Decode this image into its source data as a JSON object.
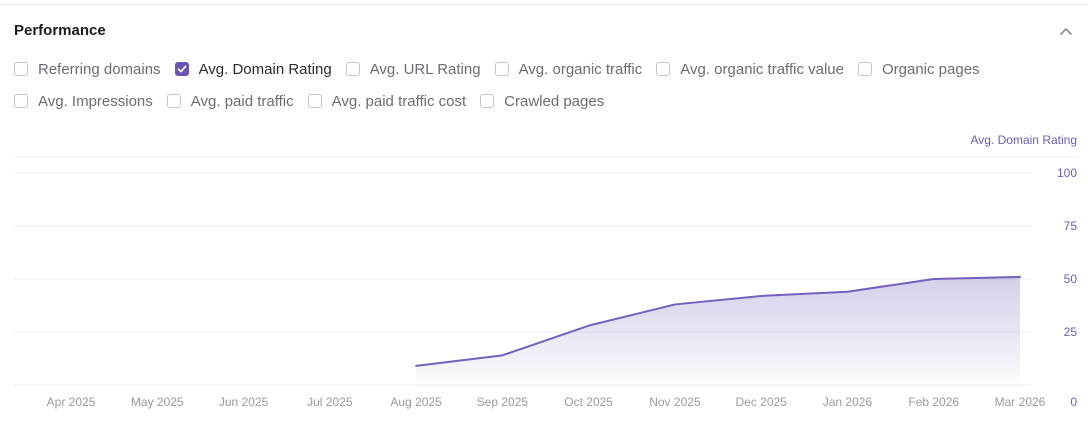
{
  "panel": {
    "title": "Performance"
  },
  "metrics": {
    "row1": [
      {
        "label": "Referring domains",
        "checked": false
      },
      {
        "label": "Avg. Domain Rating",
        "checked": true
      },
      {
        "label": "Avg. URL Rating",
        "checked": false
      },
      {
        "label": "Avg. organic traffic",
        "checked": false
      },
      {
        "label": "Avg. organic traffic value",
        "checked": false
      },
      {
        "label": "Organic pages",
        "checked": false
      }
    ],
    "row2": [
      {
        "label": "Avg. Impressions",
        "checked": false
      },
      {
        "label": "Avg. paid traffic",
        "checked": false
      },
      {
        "label": "Avg. paid traffic cost",
        "checked": false
      },
      {
        "label": "Crawled pages",
        "checked": false
      }
    ]
  },
  "colors": {
    "accent": "#6a55b2",
    "line": "#7560c0",
    "axis_text": "#6b5fb8",
    "tick_text": "#9a9aa2",
    "grid": "#ececf0"
  },
  "chart_data": {
    "type": "area",
    "series": [
      {
        "name": "Avg. Domain Rating",
        "values": [
          null,
          null,
          null,
          null,
          9,
          14,
          28,
          38,
          42,
          44,
          50,
          51
        ]
      }
    ],
    "categories": [
      "Apr 2025",
      "May 2025",
      "Jun 2025",
      "Jul 2025",
      "Aug 2025",
      "Sep 2025",
      "Oct 2025",
      "Nov 2025",
      "Dec 2025",
      "Jan 2026",
      "Feb 2026",
      "Mar 2026"
    ],
    "ylabel": "Avg. Domain Rating",
    "yticks": [
      "0",
      "25",
      "50",
      "75",
      "100"
    ],
    "ylim": [
      0,
      100
    ],
    "grid": true
  }
}
